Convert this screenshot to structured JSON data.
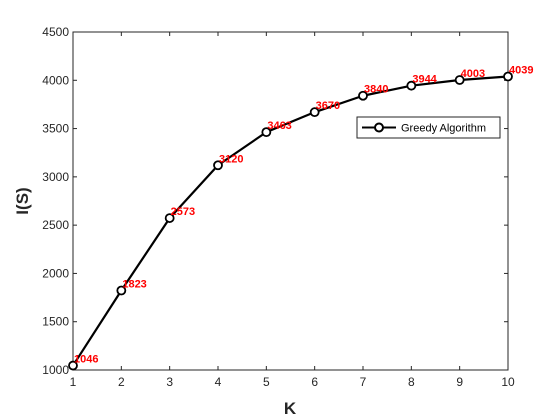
{
  "chart_data": {
    "type": "line",
    "title": "",
    "xlabel": "K",
    "ylabel": "I(S)",
    "x": [
      1,
      2,
      3,
      4,
      5,
      6,
      7,
      8,
      9,
      10
    ],
    "xlim": [
      1,
      10
    ],
    "ylim": [
      1000,
      4500
    ],
    "xticks": [
      "1",
      "2",
      "3",
      "4",
      "5",
      "6",
      "7",
      "8",
      "9",
      "10"
    ],
    "yticks": [
      "1000",
      "1500",
      "2000",
      "2500",
      "3000",
      "3500",
      "4000",
      "4500"
    ],
    "ytick_values": [
      1000,
      1500,
      2000,
      2500,
      3000,
      3500,
      4000,
      4500
    ],
    "grid": false,
    "legend_position": "top-right",
    "series": [
      {
        "name": "Greedy Algorithm",
        "values": [
          1046,
          1823,
          2573,
          3120,
          3463,
          3670,
          3840,
          3944,
          4003,
          4039
        ],
        "data_labels": [
          "1046",
          "1823",
          "2573",
          "3120",
          "3463",
          "3670",
          "3840",
          "3944",
          "4003",
          "4039"
        ],
        "color": "#000000",
        "marker": "circle"
      }
    ],
    "data_label_color": "#ff0000"
  }
}
